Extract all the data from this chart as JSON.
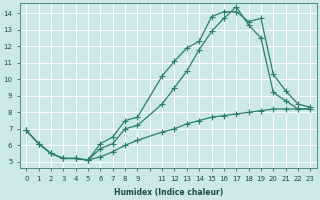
{
  "xlabel": "Humidex (Indice chaleur)",
  "ylabel": "",
  "bg_color": "#cce8ea",
  "grid_color": "#b0d4d6",
  "line_color": "#2d7d6e",
  "xlim": [
    -0.5,
    23.5
  ],
  "ylim": [
    4.6,
    14.6
  ],
  "xticks": [
    0,
    1,
    2,
    3,
    4,
    5,
    6,
    7,
    8,
    9,
    10,
    11,
    12,
    13,
    14,
    15,
    16,
    17,
    18,
    19,
    20,
    21,
    22,
    23
  ],
  "xtick_labels": [
    "0",
    "1",
    "2",
    "3",
    "4",
    "5",
    "6",
    "7",
    "8",
    "9",
    "",
    "11",
    "12",
    "13",
    "14",
    "15",
    "16",
    "17",
    "18",
    "19",
    "20",
    "21",
    "22",
    "23"
  ],
  "yticks": [
    5,
    6,
    7,
    8,
    9,
    10,
    11,
    12,
    13,
    14
  ],
  "line1_x": [
    0,
    1,
    2,
    3,
    4,
    5,
    6,
    7,
    8,
    9,
    11,
    12,
    13,
    14,
    15,
    16,
    17,
    18,
    19,
    20,
    21,
    22,
    23
  ],
  "line1_y": [
    6.9,
    6.1,
    5.5,
    5.2,
    5.2,
    5.1,
    6.1,
    6.5,
    7.5,
    7.7,
    10.2,
    11.1,
    11.9,
    12.3,
    13.8,
    14.1,
    14.1,
    13.5,
    13.7,
    10.3,
    9.3,
    8.5,
    8.3
  ],
  "line2_x": [
    0,
    1,
    2,
    3,
    4,
    5,
    6,
    7,
    8,
    9,
    11,
    12,
    13,
    14,
    15,
    16,
    17,
    18,
    19,
    20,
    21,
    22,
    23
  ],
  "line2_y": [
    6.9,
    6.1,
    5.5,
    5.2,
    5.2,
    5.1,
    5.8,
    6.1,
    7.0,
    7.2,
    8.5,
    9.5,
    10.5,
    11.8,
    12.9,
    13.7,
    14.4,
    13.3,
    12.5,
    9.2,
    8.7,
    8.2,
    8.2
  ],
  "line3_x": [
    0,
    1,
    2,
    3,
    4,
    5,
    6,
    7,
    8,
    9,
    11,
    12,
    13,
    14,
    15,
    16,
    17,
    18,
    19,
    20,
    21,
    22,
    23
  ],
  "line3_y": [
    6.9,
    6.1,
    5.5,
    5.2,
    5.2,
    5.1,
    5.3,
    5.6,
    6.0,
    6.3,
    6.8,
    7.0,
    7.3,
    7.5,
    7.7,
    7.8,
    7.9,
    8.0,
    8.1,
    8.2,
    8.2,
    8.2,
    8.2
  ]
}
